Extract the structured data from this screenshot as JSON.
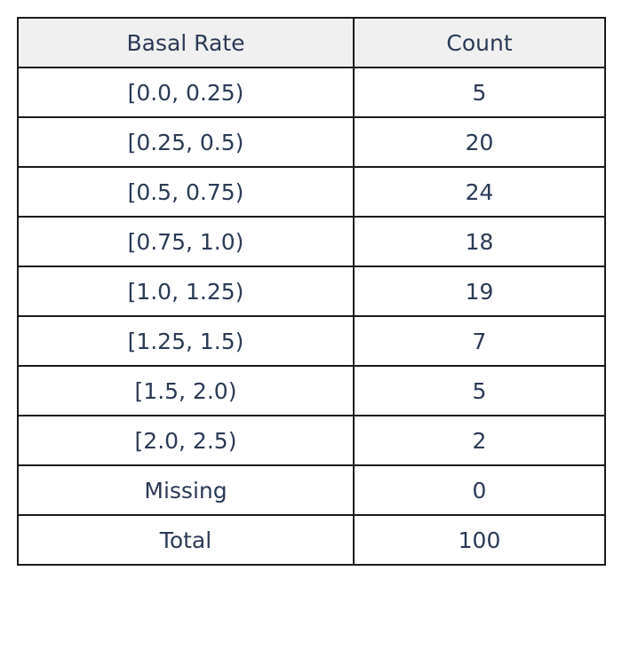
{
  "chart_data": {
    "type": "table",
    "columns": [
      "Basal Rate",
      "Count"
    ],
    "rows": [
      [
        "[0.0, 0.25)",
        "5"
      ],
      [
        "[0.25, 0.5)",
        "20"
      ],
      [
        "[0.5, 0.75)",
        "24"
      ],
      [
        "[0.75, 1.0)",
        "18"
      ],
      [
        "[1.0, 1.25)",
        "19"
      ],
      [
        "[1.25, 1.5)",
        "7"
      ],
      [
        "[1.5, 2.0)",
        "5"
      ],
      [
        "[2.0, 2.5)",
        "2"
      ],
      [
        "Missing",
        "0"
      ],
      [
        "Total",
        "100"
      ]
    ]
  },
  "colors": {
    "text": "#2b3a55",
    "header_bg": "#f0f0f0",
    "border": "#1a1a1a"
  }
}
